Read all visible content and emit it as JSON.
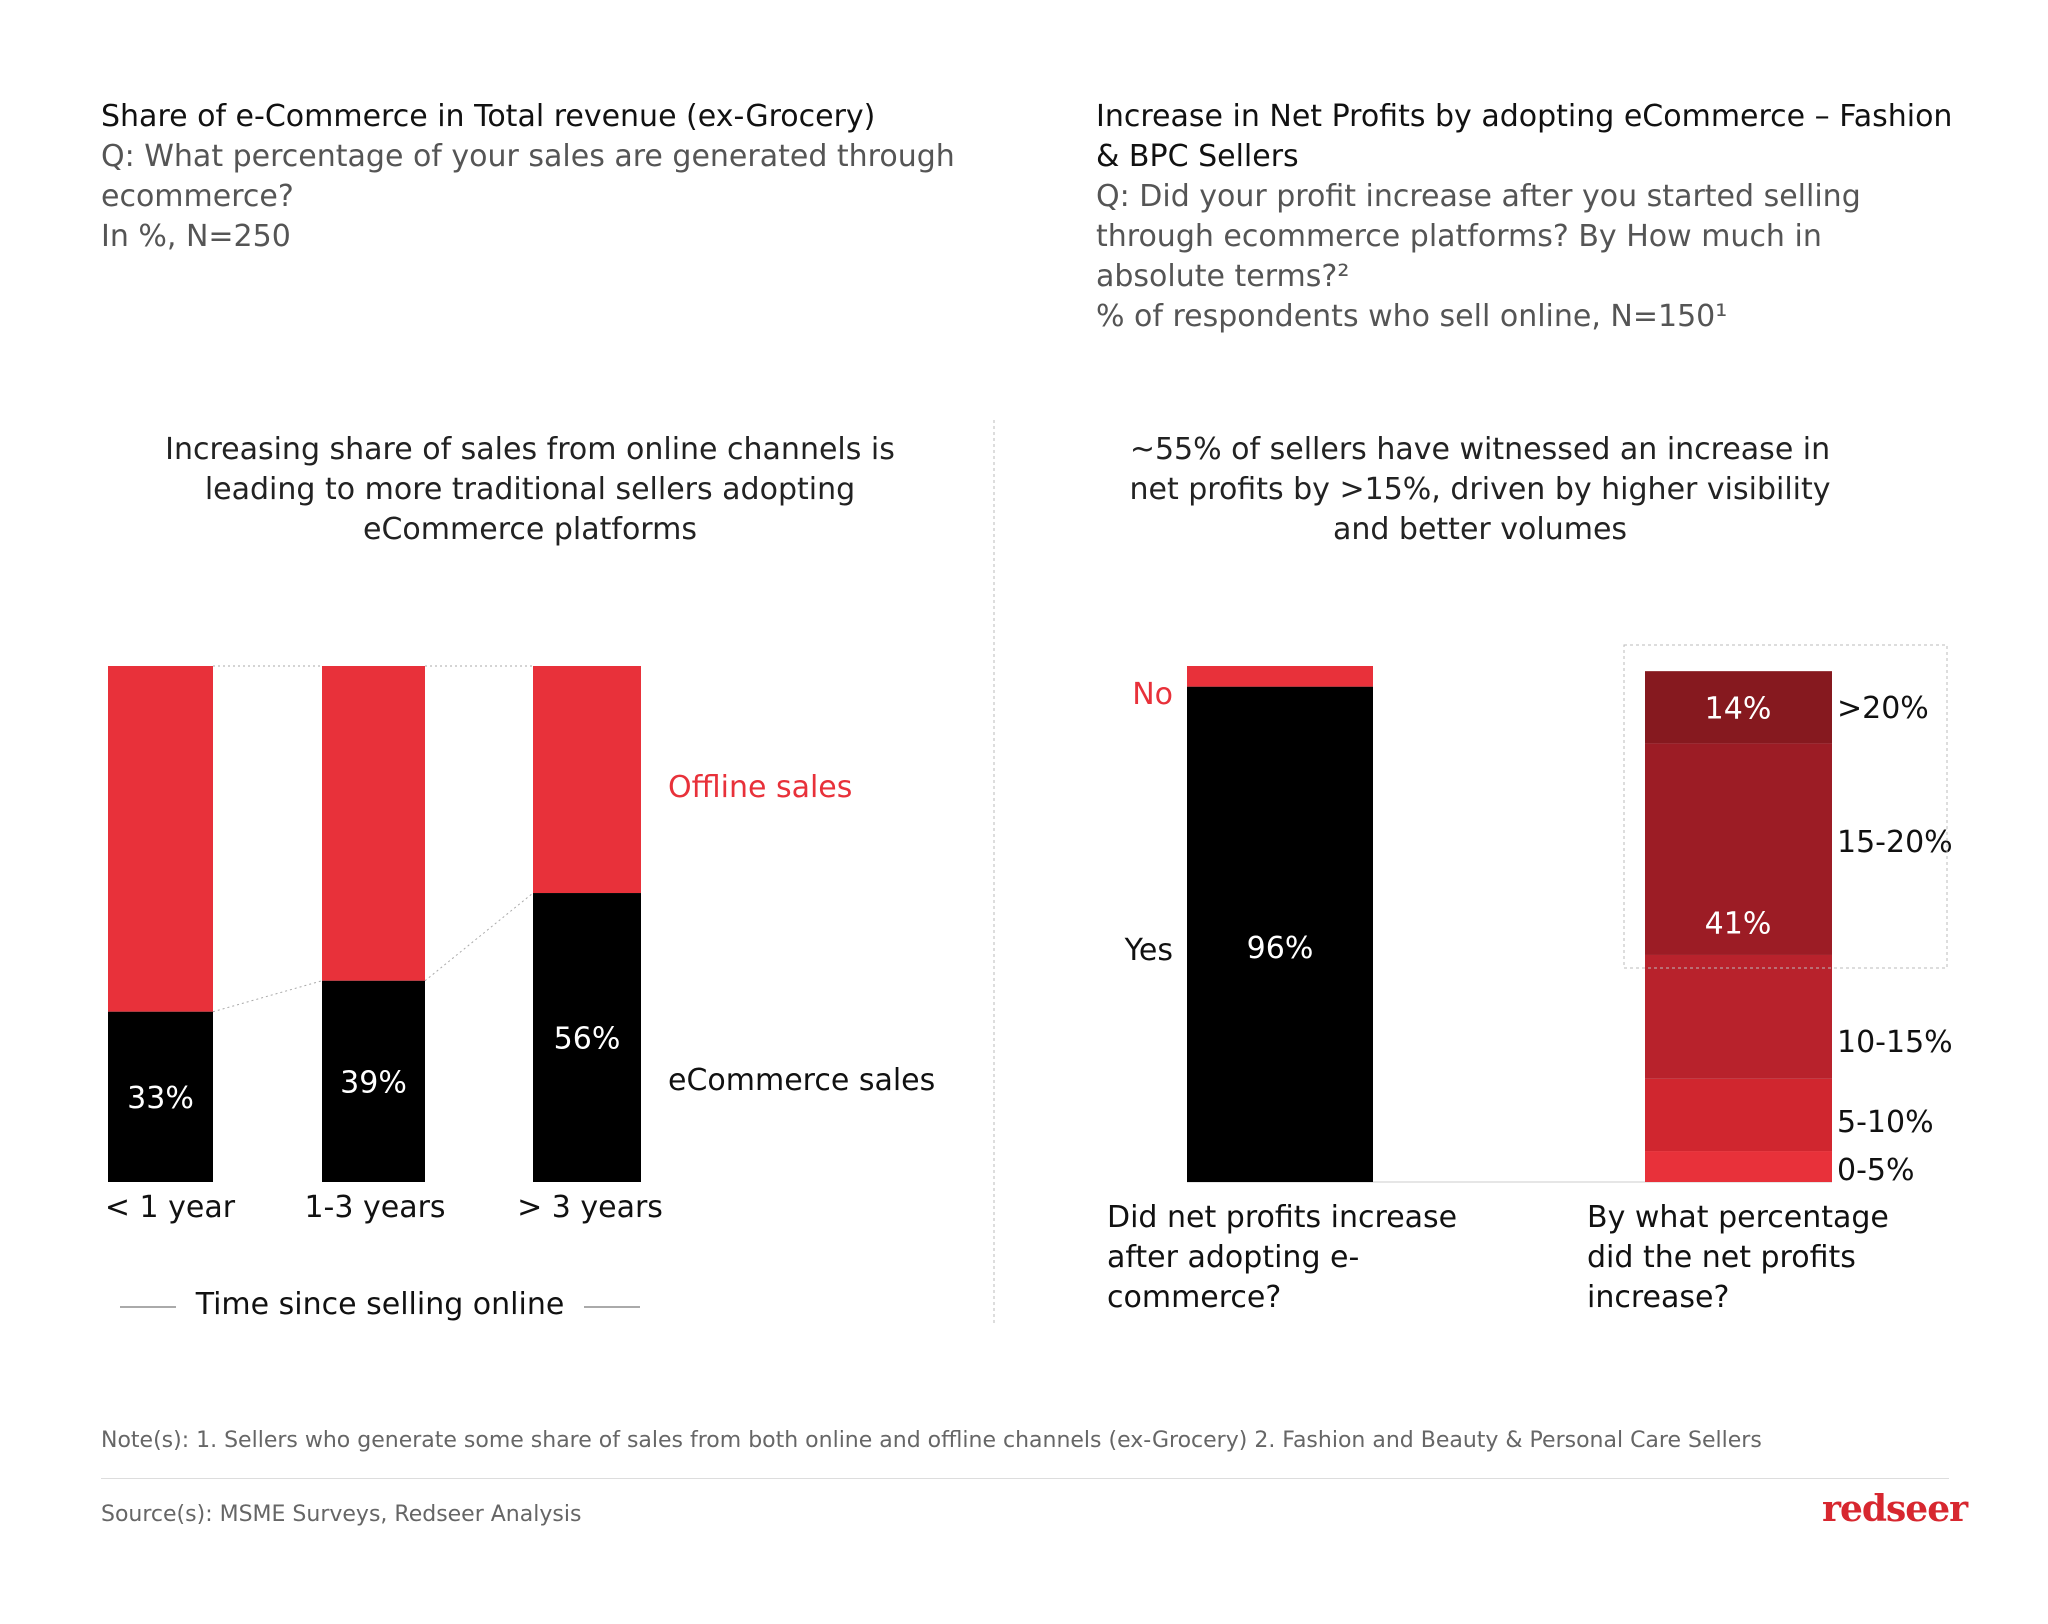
{
  "left": {
    "title": "Share of e-Commerce in Total revenue (ex-Grocery)",
    "question": "Q: What percentage of your sales are generated through ecommerce?",
    "unit": "In %, N=250",
    "subtitle": "Increasing share of sales from online channels is leading to more traditional sellers adopting eCommerce platforms"
  },
  "right": {
    "title": "Increase in Net Profits by adopting eCommerce – Fashion & BPC Sellers",
    "question": "Q: Did your profit increase after you started selling through ecommerce platforms? By How much in absolute terms?²",
    "unit": "% of respondents who sell online, N=150¹",
    "subtitle": "~55% of sellers have witnessed an increase in net profits by >15%, driven by higher visibility and better volumes"
  },
  "chart_data": [
    {
      "type": "bar",
      "stacked": true,
      "categories": [
        "< 1 year",
        "1-3 years",
        "> 3 years"
      ],
      "series": [
        {
          "name": "eCommerce sales",
          "values": [
            33,
            39,
            56
          ],
          "color": "#000000"
        },
        {
          "name": "Offline sales",
          "values": [
            67,
            61,
            44
          ],
          "color": "#e8313a"
        }
      ],
      "data_labels": [
        "33%",
        "39%",
        "56%"
      ],
      "xlabel": "Time since selling online",
      "ylim": [
        0,
        100
      ]
    },
    {
      "type": "bar",
      "stacked": true,
      "categories": [
        "Did net profits increase after adopting e-commerce?",
        "By what percentage did the net profits increase?"
      ],
      "bar1": {
        "segments": [
          {
            "name": "Yes",
            "value": 96,
            "label": "96%",
            "color": "#000000"
          },
          {
            "name": "No",
            "value": 4,
            "color": "#e8313a"
          }
        ]
      },
      "bar2": {
        "segments": [
          {
            "name": "0-5%",
            "value": 6,
            "color": "#e8313a"
          },
          {
            "name": "5-10%",
            "value": 14,
            "color": "#d0262f"
          },
          {
            "name": "10-15%",
            "value": 24,
            "color": "#b8222c"
          },
          {
            "name": "15-20%",
            "value": 41,
            "label": "41%",
            "color": "#9c1c25"
          },
          {
            "name": ">20%",
            "value": 14,
            "label": "14%",
            "color": "#86191f"
          }
        ]
      },
      "ylim": [
        0,
        100
      ]
    }
  ],
  "footer": {
    "note": "Note(s): 1. Sellers who generate some share of sales from both online and offline channels (ex-Grocery) 2. Fashion and Beauty & Personal Care Sellers",
    "source": "Source(s): MSME Surveys, Redseer Analysis",
    "logo": "redseer"
  }
}
